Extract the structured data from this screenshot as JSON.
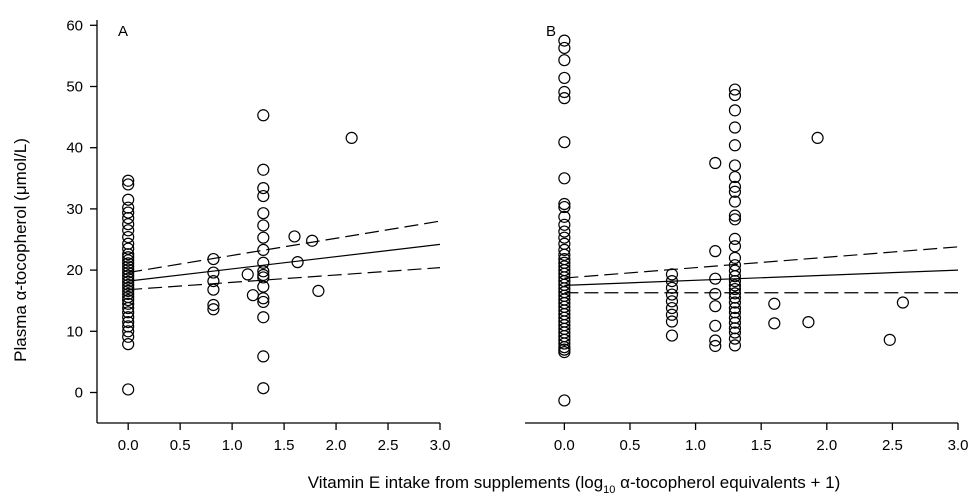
{
  "chart_data": {
    "type": "scatter",
    "ylabel": "Plasma α-tocopherol (μmol/L)",
    "xlabel_parts": {
      "pre": "Vitamin E intake from  supplements (log",
      "sub": "10",
      "post": " α-tocopherol equivalents + 1)"
    },
    "y_ticks": [
      0,
      10,
      20,
      30,
      40,
      50,
      60
    ],
    "x_ticks": [
      "0.0",
      "0.5",
      "1.0",
      "1.5",
      "2.0",
      "2.5",
      "3.0"
    ],
    "ylim": [
      -5,
      60
    ],
    "xlim": [
      -0.3,
      3.0
    ],
    "grid": false,
    "panels": [
      {
        "label": "A",
        "points": [
          {
            "x": 0,
            "y": [
              34.6,
              34,
              31.5,
              30.2,
              29.4,
              28.5,
              27.5,
              26.5,
              25.4,
              24.3,
              23.5,
              22.6,
              22.1,
              21.6,
              21.1,
              20.6,
              20.1,
              19.6,
              19.1,
              18.6,
              18.1,
              17.6,
              17.1,
              16.6,
              16.1,
              15.6,
              15.1,
              14.5,
              13.8,
              13.1,
              12.3,
              11.5,
              10.8,
              10,
              9.1,
              7.9,
              0.5
            ]
          },
          {
            "x": 0.82,
            "y": [
              21.8,
              19.6,
              18.2,
              16.8,
              14.3,
              13.6
            ]
          },
          {
            "x": 1.15,
            "y": [
              19.3
            ]
          },
          {
            "x": 1.2,
            "y": [
              15.9
            ]
          },
          {
            "x": 1.3,
            "y": [
              45.3,
              36.4,
              33.4,
              32.1,
              29.3,
              27.3,
              25.3,
              23.3,
              21.2,
              19.8,
              19.2,
              18.8,
              17.3,
              15.4,
              14.8,
              12.3,
              5.9,
              0.7
            ]
          },
          {
            "x": 1.6,
            "y": [
              25.5
            ]
          },
          {
            "x": 1.63,
            "y": [
              21.3
            ]
          },
          {
            "x": 1.77,
            "y": [
              24.8
            ]
          },
          {
            "x": 1.83,
            "y": [
              16.6
            ]
          },
          {
            "x": 2.15,
            "y": [
              41.6
            ]
          }
        ],
        "fit": {
          "x": [
            0,
            3.0
          ],
          "y": [
            18.2,
            24.2
          ]
        },
        "ci_upper": {
          "x": [
            0,
            3.0
          ],
          "y": [
            19.6,
            28.0
          ]
        },
        "ci_lower": {
          "x": [
            0,
            3.0
          ],
          "y": [
            16.8,
            20.4
          ]
        }
      },
      {
        "label": "B",
        "points": [
          {
            "x": 0,
            "y": [
              57.5,
              56.3,
              54.3,
              51.4,
              49.1,
              48.1,
              40.9,
              35.0,
              30.8,
              30.3,
              28.7,
              27.4,
              26.3,
              25.3,
              24.3,
              23.3,
              22.5,
              21.8,
              21.2,
              20.6,
              20.0,
              19.4,
              18.8,
              18.2,
              17.6,
              17.0,
              16.4,
              15.8,
              15.2,
              14.6,
              14.0,
              13.4,
              12.8,
              12.2,
              11.6,
              11.0,
              10.4,
              9.8,
              9.2,
              8.6,
              8.0,
              7.4,
              7.0,
              6.6,
              -1.3
            ]
          },
          {
            "x": 0.82,
            "y": [
              19.3,
              18.2,
              17.1,
              16.0,
              14.9,
              13.8,
              12.7,
              11.6,
              9.3
            ]
          },
          {
            "x": 1.15,
            "y": [
              37.5,
              23.1,
              18.6,
              16.1,
              14.1,
              10.9,
              8.5,
              7.6
            ]
          },
          {
            "x": 1.3,
            "y": [
              49.5,
              48.6,
              46.1,
              43.3,
              40.4,
              37.1,
              35.2,
              33.6,
              32.8,
              31.2,
              28.9,
              28.3,
              25.1,
              23.9,
              22.0,
              20.8,
              19.9,
              19.0,
              18.2,
              17.5,
              16.9,
              16.2,
              15.5,
              14.7,
              13.8,
              13.1,
              12.2,
              11.4,
              10.5,
              9.8,
              8.8,
              7.7
            ]
          },
          {
            "x": 1.6,
            "y": [
              14.5,
              11.3
            ]
          },
          {
            "x": 1.86,
            "y": [
              11.5
            ]
          },
          {
            "x": 1.93,
            "y": [
              41.6
            ]
          },
          {
            "x": 2.48,
            "y": [
              8.6
            ]
          },
          {
            "x": 2.58,
            "y": [
              14.7
            ]
          }
        ],
        "fit": {
          "x": [
            0,
            3.0
          ],
          "y": [
            17.5,
            20.0
          ]
        },
        "ci_upper": {
          "x": [
            0,
            3.0
          ],
          "y": [
            18.7,
            23.8
          ]
        },
        "ci_lower": {
          "x": [
            0,
            3.0
          ],
          "y": [
            16.3,
            16.3
          ]
        }
      }
    ]
  }
}
